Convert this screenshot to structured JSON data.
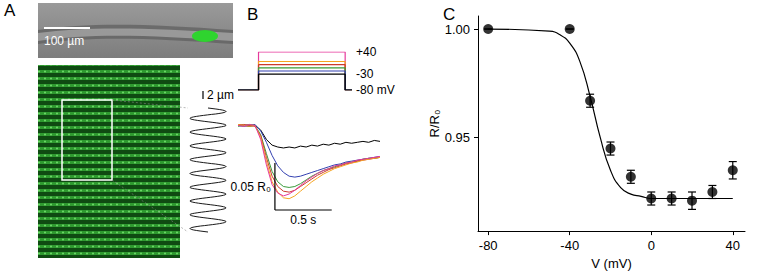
{
  "panel_a": {
    "label": "A",
    "scale_bars": [
      "100 µm",
      "2 µm"
    ]
  },
  "chart_data": [
    {
      "type": "line",
      "title": "B",
      "x": [
        0,
        0.18,
        0.18,
        0.94,
        0.94,
        1.0
      ],
      "xlim": [
        0,
        1.0
      ],
      "ylim": [
        -80,
        40
      ],
      "yticks": [
        {
          "value": 40,
          "label": "+40"
        },
        -30,
        {
          "value": -80,
          "label": "-80 mV"
        }
      ],
      "tick_labels": "y",
      "series": [
        {
          "color": "#e6399b",
          "values": [
            -80,
            -80,
            40,
            40,
            -80,
            -80
          ]
        },
        {
          "color": "#f5a623",
          "values": [
            -80,
            -80,
            10,
            10,
            -80,
            -80
          ]
        },
        {
          "color": "#cc3a2e",
          "values": [
            -80,
            -80,
            0,
            0,
            -80,
            -80
          ]
        },
        {
          "color": "#3a9a3a",
          "values": [
            -80,
            -80,
            -10,
            -10,
            -80,
            -80
          ]
        },
        {
          "color": "#3340b0",
          "values": [
            -80,
            -80,
            -20,
            -20,
            -80,
            -80
          ]
        },
        {
          "color": "#000000",
          "values": [
            -80,
            -80,
            -30,
            -30,
            -80,
            -80
          ]
        }
      ]
    },
    {
      "type": "line",
      "x": [
        0,
        0.05,
        0.1,
        0.15,
        0.2,
        0.25,
        0.3,
        0.35,
        0.4,
        0.45,
        0.5,
        0.55,
        0.6,
        0.65,
        0.7,
        0.75,
        0.8,
        0.85,
        0.9,
        0.95,
        1.0,
        1.05,
        1.1,
        1.15,
        1.2,
        1.25
      ],
      "xlim": [
        0,
        1.25
      ],
      "ylim": [
        0.91,
        1.01
      ],
      "tick_labels": false,
      "scale_bars": [
        {
          "axis": "y",
          "value": 0.05,
          "label": "0.05 R₀"
        },
        {
          "axis": "x",
          "value": 0.5,
          "label": "0.5 s"
        }
      ],
      "series": [
        {
          "color": "#000000",
          "values": [
            1.001,
            1.0,
            0.999,
            1.0,
            0.995,
            0.985,
            0.979,
            0.977,
            0.976,
            0.977,
            0.976,
            0.978,
            0.977,
            0.979,
            0.978,
            0.98,
            0.979,
            0.981,
            0.98,
            0.982,
            0.981,
            0.982,
            0.983,
            0.982,
            0.984,
            0.983
          ]
        },
        {
          "color": "#3340b0",
          "values": [
            1.0,
            0.999,
            1.0,
            1.001,
            0.994,
            0.982,
            0.968,
            0.957,
            0.95,
            0.946,
            0.945,
            0.946,
            0.948,
            0.95,
            0.952,
            0.954,
            0.956,
            0.958,
            0.959,
            0.961,
            0.962,
            0.963,
            0.964,
            0.965,
            0.966,
            0.967
          ]
        },
        {
          "color": "#3a9a3a",
          "values": [
            0.999,
            1.0,
            1.001,
            1.0,
            0.99,
            0.97,
            0.951,
            0.94,
            0.935,
            0.934,
            0.935,
            0.938,
            0.942,
            0.946,
            0.949,
            0.952,
            0.954,
            0.956,
            0.958,
            0.96,
            0.961,
            0.962,
            0.964,
            0.965,
            0.965,
            0.966
          ]
        },
        {
          "color": "#cc3a2e",
          "values": [
            1.0,
            1.001,
            1.0,
            0.999,
            0.989,
            0.966,
            0.946,
            0.935,
            0.93,
            0.929,
            0.931,
            0.935,
            0.939,
            0.943,
            0.947,
            0.95,
            0.953,
            0.955,
            0.957,
            0.959,
            0.96,
            0.962,
            0.963,
            0.964,
            0.965,
            0.966
          ]
        },
        {
          "color": "#f5a623",
          "values": [
            1.001,
            1.0,
            0.999,
            1.0,
            0.987,
            0.962,
            0.94,
            0.929,
            0.923,
            0.922,
            0.925,
            0.93,
            0.935,
            0.94,
            0.944,
            0.948,
            0.951,
            0.954,
            0.956,
            0.958,
            0.96,
            0.961,
            0.963,
            0.964,
            0.965,
            0.966
          ]
        },
        {
          "color": "#e6399b",
          "values": [
            1.0,
            0.999,
            1.001,
            1.0,
            0.985,
            0.958,
            0.937,
            0.928,
            0.925,
            0.927,
            0.931,
            0.936,
            0.941,
            0.945,
            0.949,
            0.952,
            0.954,
            0.957,
            0.958,
            0.96,
            0.961,
            0.963,
            0.964,
            0.965,
            0.966,
            0.967
          ]
        }
      ]
    },
    {
      "type": "scatter",
      "title": "C",
      "x": [
        -80,
        -40,
        -30,
        -20,
        -10,
        0,
        10,
        20,
        30,
        40
      ],
      "values": [
        1.0,
        1.0,
        0.967,
        0.945,
        0.932,
        0.922,
        0.922,
        0.921,
        0.925,
        0.935
      ],
      "errors": [
        0,
        0,
        0.003,
        0.003,
        0.003,
        0.003,
        0.003,
        0.004,
        0.003,
        0.004
      ],
      "fit": {
        "x": [
          -80,
          -50,
          -45,
          -40,
          -35,
          -30,
          -25,
          -20,
          -15,
          -10,
          -5,
          0,
          10,
          20,
          30,
          40
        ],
        "values": [
          1.0,
          0.999,
          0.9975,
          0.9935,
          0.985,
          0.969,
          0.95,
          0.935,
          0.927,
          0.924,
          0.923,
          0.922,
          0.922,
          0.922,
          0.922,
          0.922
        ]
      },
      "xlabel": "V (mV)",
      "ylabel": "R/R₀",
      "xlim": [
        -85,
        46
      ],
      "ylim": [
        0.907,
        1.006
      ],
      "xticks": [
        -80,
        -40,
        0,
        40
      ],
      "yticks": [
        0.95,
        {
          "value": 1,
          "label": "1.00"
        }
      ],
      "marker": "circle",
      "color": "#000000"
    }
  ]
}
